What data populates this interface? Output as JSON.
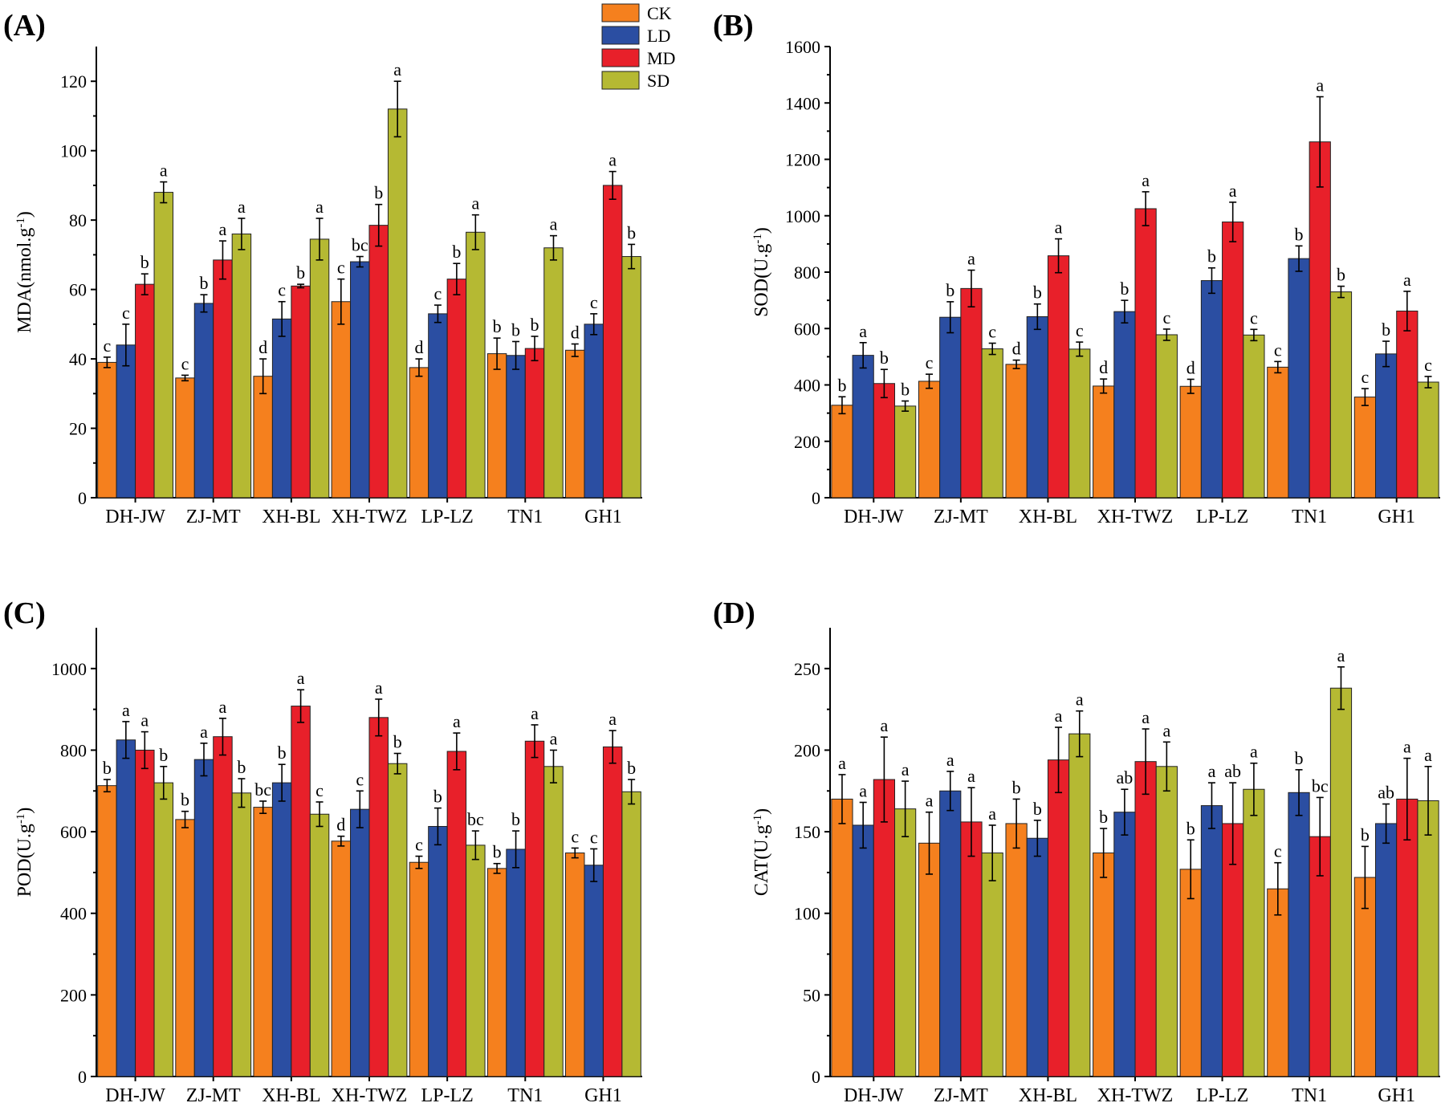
{
  "chart_data": [
    {
      "type": "bar",
      "panel_label": "(A)",
      "ylabel": "MDA(nmol.g",
      "ylabel_sup": "-1",
      "ylabel_close": ")",
      "ylim": [
        0,
        130
      ],
      "yticks": [
        0,
        20,
        40,
        60,
        80,
        100,
        120
      ],
      "categories": [
        "DH-JW",
        "ZJ-MT",
        "XH-BL",
        "XH-TWZ",
        "LP-LZ",
        "TN1",
        "GH1"
      ],
      "series": [
        {
          "name": "CK",
          "values": [
            39,
            34.5,
            35,
            56.5,
            37.5,
            41.5,
            42.5
          ],
          "errors": [
            1.5,
            0.8,
            5,
            6.5,
            2.5,
            4.5,
            1.8
          ],
          "letters": [
            "c",
            "c",
            "d",
            "c",
            "d",
            "b",
            "d"
          ]
        },
        {
          "name": "LD",
          "values": [
            44,
            56,
            51.5,
            68,
            53,
            41,
            50
          ],
          "errors": [
            6,
            2.5,
            5,
            1.5,
            2.5,
            4,
            3
          ],
          "letters": [
            "c",
            "b",
            "c",
            "bc",
            "c",
            "b",
            "c"
          ]
        },
        {
          "name": "MD",
          "values": [
            61.5,
            68.5,
            61,
            78.5,
            63,
            43,
            90
          ],
          "errors": [
            3,
            5.5,
            0.5,
            6,
            4.5,
            3.5,
            4
          ],
          "letters": [
            "b",
            "a",
            "b",
            "b",
            "b",
            "b",
            "a"
          ]
        },
        {
          "name": "SD",
          "values": [
            88,
            76,
            74.5,
            112,
            76.5,
            72,
            69.5
          ],
          "errors": [
            3,
            4.5,
            6,
            8,
            5,
            3.5,
            3.5
          ],
          "letters": [
            "a",
            "a",
            "a",
            "a",
            "a",
            "a",
            "b"
          ]
        }
      ],
      "legend": {
        "entries": [
          "CK",
          "LD",
          "MD",
          "SD"
        ],
        "placement": "top-right"
      }
    },
    {
      "type": "bar",
      "panel_label": "(B)",
      "ylabel": "SOD(U.g",
      "ylabel_sup": "-1",
      "ylabel_close": ")",
      "ylim": [
        0,
        1600
      ],
      "yticks": [
        0,
        200,
        400,
        600,
        800,
        1000,
        1200,
        1400,
        1600
      ],
      "categories": [
        "DH-JW",
        "ZJ-MT",
        "XH-BL",
        "XH-TWZ",
        "LP-LZ",
        "TN1",
        "GH1"
      ],
      "series": [
        {
          "name": "CK",
          "values": [
            328,
            413,
            473,
            396,
            395,
            463,
            357
          ],
          "errors": [
            30,
            25,
            15,
            25,
            25,
            20,
            30
          ],
          "letters": [
            "b",
            "c",
            "d",
            "d",
            "d",
            "c",
            "c"
          ]
        },
        {
          "name": "LD",
          "values": [
            505,
            640,
            642,
            660,
            770,
            848,
            510
          ],
          "errors": [
            45,
            55,
            45,
            40,
            45,
            45,
            45
          ],
          "letters": [
            "a",
            "b",
            "b",
            "b",
            "b",
            "b",
            "b"
          ]
        },
        {
          "name": "MD",
          "values": [
            405,
            742,
            858,
            1025,
            978,
            1262,
            662
          ],
          "errors": [
            50,
            65,
            60,
            60,
            70,
            160,
            70
          ],
          "letters": [
            "b",
            "a",
            "a",
            "a",
            "a",
            "a",
            "a"
          ]
        },
        {
          "name": "SD",
          "values": [
            325,
            528,
            527,
            578,
            577,
            730,
            410
          ],
          "errors": [
            18,
            20,
            25,
            20,
            20,
            20,
            20
          ],
          "letters": [
            "b",
            "c",
            "c",
            "c",
            "c",
            "b",
            "c"
          ]
        }
      ]
    },
    {
      "type": "bar",
      "panel_label": "(C)",
      "ylabel": "POD(U.g",
      "ylabel_sup": "-1",
      "ylabel_close": ")",
      "ylim": [
        0,
        1100
      ],
      "yticks": [
        0,
        200,
        400,
        600,
        800,
        1000
      ],
      "categories": [
        "DH-JW",
        "ZJ-MT",
        "XH-BL",
        "XH-TWZ",
        "LP-LZ",
        "TN1",
        "GH1"
      ],
      "series": [
        {
          "name": "CK",
          "values": [
            713,
            630,
            660,
            577,
            525,
            510,
            548
          ],
          "errors": [
            15,
            20,
            15,
            12,
            15,
            12,
            12
          ],
          "letters": [
            "b",
            "b",
            "bc",
            "d",
            "c",
            "b",
            "c"
          ]
        },
        {
          "name": "LD",
          "values": [
            825,
            777,
            720,
            655,
            613,
            557,
            518
          ],
          "errors": [
            45,
            40,
            45,
            45,
            45,
            45,
            40
          ],
          "letters": [
            "a",
            "a",
            "b",
            "c",
            "b",
            "b",
            "c"
          ]
        },
        {
          "name": "MD",
          "values": [
            800,
            833,
            908,
            880,
            797,
            822,
            808
          ],
          "errors": [
            45,
            45,
            40,
            45,
            45,
            40,
            40
          ],
          "letters": [
            "a",
            "a",
            "a",
            "a",
            "a",
            "a",
            "a"
          ]
        },
        {
          "name": "SD",
          "values": [
            720,
            695,
            643,
            767,
            567,
            760,
            698
          ],
          "errors": [
            40,
            35,
            30,
            25,
            35,
            40,
            30
          ],
          "letters": [
            "b",
            "b",
            "c",
            "b",
            "bc",
            "a",
            "b"
          ]
        }
      ]
    },
    {
      "type": "bar",
      "panel_label": "(D)",
      "ylabel": "CAT(U.g",
      "ylabel_sup": "-1",
      "ylabel_close": ")",
      "ylim": [
        0,
        275
      ],
      "yticks": [
        0,
        50,
        100,
        150,
        200,
        250
      ],
      "categories": [
        "DH-JW",
        "ZJ-MT",
        "XH-BL",
        "XH-TWZ",
        "LP-LZ",
        "TN1",
        "GH1"
      ],
      "series": [
        {
          "name": "CK",
          "values": [
            170,
            143,
            155,
            137,
            127,
            115,
            122
          ],
          "errors": [
            15,
            19,
            15,
            15,
            18,
            16,
            19
          ],
          "letters": [
            "a",
            "a",
            "b",
            "b",
            "b",
            "c",
            "b"
          ]
        },
        {
          "name": "LD",
          "values": [
            154,
            175,
            146,
            162,
            166,
            174,
            155
          ],
          "errors": [
            14,
            12,
            11,
            14,
            14,
            14,
            12
          ],
          "letters": [
            "a",
            "a",
            "b",
            "ab",
            "a",
            "b",
            "ab"
          ]
        },
        {
          "name": "MD",
          "values": [
            182,
            156,
            194,
            193,
            155,
            147,
            170
          ],
          "errors": [
            26,
            21,
            20,
            20,
            25,
            24,
            25
          ],
          "letters": [
            "a",
            "a",
            "a",
            "a",
            "ab",
            "bc",
            "a"
          ]
        },
        {
          "name": "SD",
          "values": [
            164,
            137,
            210,
            190,
            176,
            238,
            169
          ],
          "errors": [
            17,
            17,
            14,
            15,
            16,
            13,
            21
          ],
          "letters": [
            "a",
            "a",
            "a",
            "a",
            "a",
            "a",
            "a"
          ]
        }
      ]
    }
  ],
  "colors": {
    "CK": "#F5801E",
    "LD": "#2B4EA2",
    "MD": "#E8202A",
    "SD": "#B5B933"
  }
}
